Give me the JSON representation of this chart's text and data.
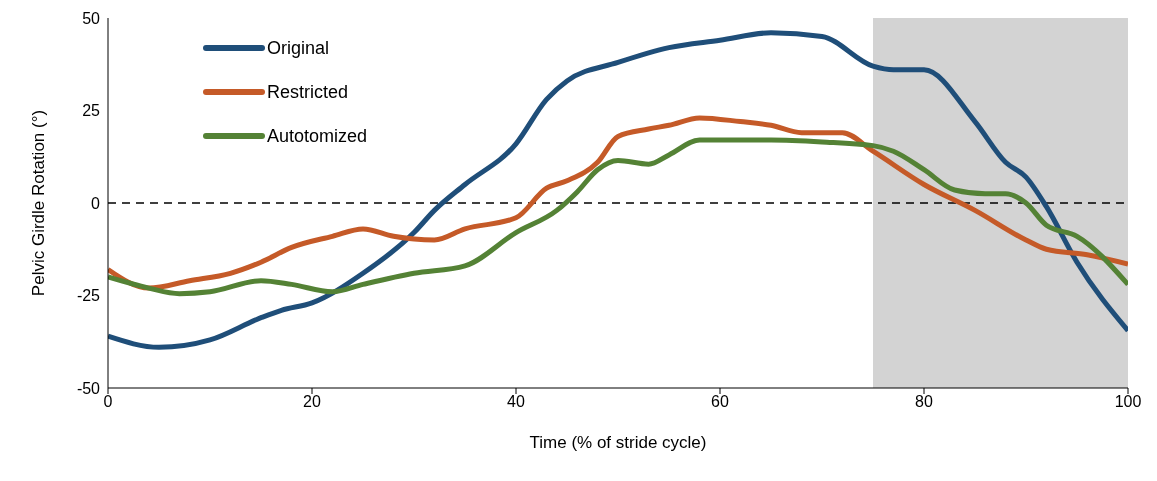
{
  "chart_data": {
    "type": "line",
    "xlabel": "Time (% of stride cycle)",
    "ylabel": "Pelvic Girdle Rotation (°)",
    "xlim": [
      0,
      100
    ],
    "xticks": [
      0,
      20,
      40,
      60,
      80,
      100
    ],
    "ylim": [
      -50,
      50
    ],
    "yticks": [
      -50,
      -25,
      0,
      25,
      50
    ],
    "grid": false,
    "legend": "top left",
    "marker": "none",
    "line_style": "solid",
    "ref_lines": [
      {
        "axis": "y",
        "value": 0,
        "line_style": "dashed",
        "color": "#000000"
      }
    ],
    "bands": [
      {
        "axis": "x",
        "from": 75,
        "to": 100,
        "color": "#d3d3d3"
      }
    ],
    "series": [
      {
        "name": "Original",
        "color": "#1f4e79",
        "x": [
          0,
          5,
          10,
          15,
          17,
          20,
          25,
          30,
          32,
          35,
          40,
          43,
          45,
          50,
          55,
          60,
          65,
          70,
          75,
          77,
          80,
          85,
          88,
          90,
          92,
          95,
          100
        ],
        "values": [
          -36,
          -39,
          -37,
          -31,
          -29,
          -27,
          -19,
          -8,
          -2,
          5,
          16,
          28,
          33,
          38,
          42,
          44,
          46,
          45,
          37,
          36,
          36,
          22,
          11,
          7,
          -1,
          -16,
          -34.5
        ]
      },
      {
        "name": "Restricted",
        "color": "#c55a28",
        "x": [
          0,
          4,
          8,
          12,
          15,
          18,
          22,
          25,
          28,
          32,
          35,
          40,
          43,
          45,
          48,
          50,
          53,
          55,
          58,
          62,
          65,
          68,
          72,
          75,
          80,
          85,
          90,
          92,
          96,
          100
        ],
        "values": [
          -18,
          -23,
          -21,
          -19,
          -16,
          -12,
          -9,
          -7,
          -9,
          -10,
          -7,
          -4,
          4,
          6,
          11,
          18,
          20,
          21,
          23,
          22,
          21,
          19,
          19,
          14,
          5,
          -2,
          -10,
          -12.5,
          -14,
          -16.5
        ]
      },
      {
        "name": "Autotomized",
        "color": "#548235",
        "x": [
          0,
          4,
          7,
          10,
          15,
          18,
          22,
          25,
          30,
          35,
          40,
          44,
          46,
          48,
          50,
          53,
          55,
          58,
          62,
          65,
          70,
          75,
          77,
          80,
          83,
          86,
          88,
          90,
          92,
          95,
          100
        ],
        "values": [
          -20,
          -23,
          -24.5,
          -24,
          -21,
          -22,
          -24,
          -22,
          -19,
          -17,
          -8,
          -2,
          3,
          9,
          11.5,
          10.5,
          13,
          17,
          17,
          17,
          16.5,
          15.5,
          14,
          9,
          3.5,
          2.5,
          2.5,
          0,
          -6,
          -9,
          -22
        ]
      }
    ]
  }
}
